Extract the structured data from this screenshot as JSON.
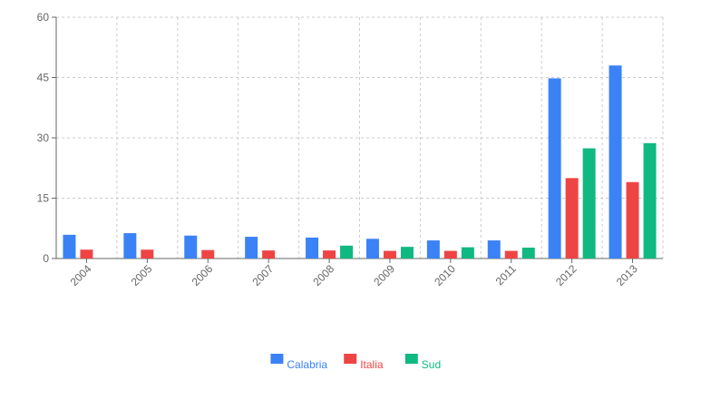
{
  "chart_data": {
    "type": "bar",
    "categories": [
      "2004",
      "2005",
      "2006",
      "2007",
      "2008",
      "2009",
      "2010",
      "2011",
      "2012",
      "2013"
    ],
    "series": [
      {
        "name": "Calabria",
        "color": "#3b82f6",
        "values": [
          5.9,
          6.3,
          5.7,
          5.4,
          5.2,
          4.9,
          4.5,
          4.5,
          44.8,
          48.0
        ]
      },
      {
        "name": "Italia",
        "color": "#ef4444",
        "values": [
          2.2,
          2.2,
          2.1,
          2.0,
          2.0,
          1.9,
          1.9,
          1.9,
          20.0,
          19.0
        ]
      },
      {
        "name": "Sud",
        "color": "#10b981",
        "values": [
          null,
          null,
          null,
          null,
          3.2,
          2.9,
          2.8,
          2.7,
          27.4,
          28.7
        ]
      }
    ],
    "yticks": [
      "0",
      "15",
      "30",
      "45",
      "60"
    ],
    "ylim": [
      0,
      60
    ],
    "grid": true,
    "legend_position": "bottom-center"
  }
}
